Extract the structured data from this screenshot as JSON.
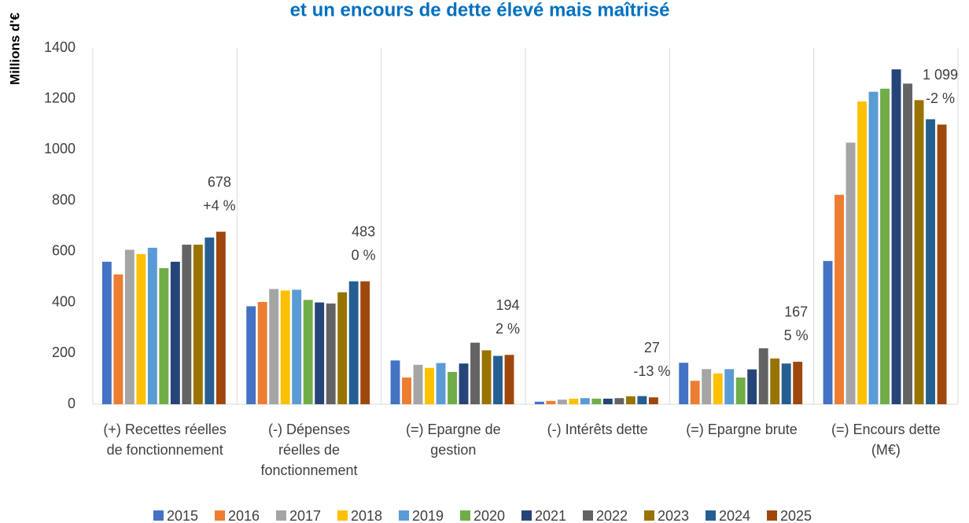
{
  "chart_data": {
    "type": "bar",
    "title": "et un encours de dette élevé mais maîtrisé",
    "y_label": "Millions d'€",
    "categories": [
      "(+) Recettes réelles de fonctionnement",
      "(-) Dépenses réelles de fonctionnement",
      "(=) Epargne de gestion",
      "(-) Intérêts dette",
      "(=) Epargne brute",
      "(=) Encours dette (M€)"
    ],
    "series": [
      {
        "name": "2015",
        "color": "#4472c4",
        "values": [
          560,
          385,
          172,
          10,
          163,
          563
        ]
      },
      {
        "name": "2016",
        "color": "#ed7d31",
        "values": [
          510,
          402,
          105,
          13,
          92,
          823
        ]
      },
      {
        "name": "2017",
        "color": "#a5a5a5",
        "values": [
          607,
          453,
          155,
          18,
          138,
          1028
        ]
      },
      {
        "name": "2018",
        "color": "#ffc000",
        "values": [
          590,
          447,
          143,
          22,
          121,
          1190
        ]
      },
      {
        "name": "2019",
        "color": "#5b9bd5",
        "values": [
          615,
          450,
          162,
          24,
          138,
          1228
        ]
      },
      {
        "name": "2020",
        "color": "#70ad47",
        "values": [
          535,
          410,
          127,
          22,
          105,
          1240
        ]
      },
      {
        "name": "2021",
        "color": "#264478",
        "values": [
          560,
          400,
          160,
          22,
          137,
          1316
        ]
      },
      {
        "name": "2022",
        "color": "#636363",
        "values": [
          627,
          396,
          242,
          24,
          220,
          1260
        ]
      },
      {
        "name": "2023",
        "color": "#997300",
        "values": [
          627,
          440,
          212,
          31,
          180,
          1195
        ]
      },
      {
        "name": "2024",
        "color": "#255e91",
        "values": [
          655,
          483,
          190,
          32,
          160,
          1120
        ]
      },
      {
        "name": "2025",
        "color": "#9e480e",
        "values": [
          678,
          483,
          194,
          27,
          167,
          1099
        ],
        "value_labels": [
          "678",
          "483",
          "194",
          "27",
          "167",
          "1 099"
        ]
      }
    ],
    "annotations": [
      "+4 %",
      "0 %",
      "2 %",
      "-13 %",
      "5 %",
      "-2 %"
    ],
    "ylim": [
      0,
      1400
    ],
    "yticks": [
      0,
      200,
      400,
      600,
      800,
      1000,
      1200,
      1400
    ],
    "legend": "bottom"
  }
}
